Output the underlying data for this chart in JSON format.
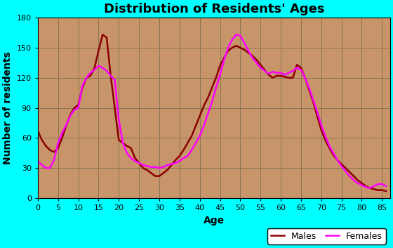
{
  "title": "Distribution of Residents' Ages",
  "xlabel": "Age",
  "ylabel": "Number of residents",
  "xlim": [
    0,
    87
  ],
  "ylim": [
    0,
    180
  ],
  "xticks": [
    0,
    5,
    10,
    15,
    20,
    25,
    30,
    35,
    40,
    45,
    50,
    55,
    60,
    65,
    70,
    75,
    80,
    85
  ],
  "yticks": [
    0,
    30,
    60,
    90,
    120,
    150,
    180
  ],
  "background_color": "#00FFFF",
  "plot_bg_color": "#C8956A",
  "grid_color": "#8B7355",
  "male_color": "#8B0000",
  "female_color": "#FF00FF",
  "ages": [
    0,
    1,
    2,
    3,
    4,
    5,
    6,
    7,
    8,
    9,
    10,
    11,
    12,
    13,
    14,
    15,
    16,
    17,
    18,
    19,
    20,
    21,
    22,
    23,
    24,
    25,
    26,
    27,
    28,
    29,
    30,
    31,
    32,
    33,
    34,
    35,
    36,
    37,
    38,
    39,
    40,
    41,
    42,
    43,
    44,
    45,
    46,
    47,
    48,
    49,
    50,
    51,
    52,
    53,
    54,
    55,
    56,
    57,
    58,
    59,
    60,
    61,
    62,
    63,
    64,
    65,
    66,
    67,
    68,
    69,
    70,
    71,
    72,
    73,
    74,
    75,
    76,
    77,
    78,
    79,
    80,
    81,
    82,
    83,
    84,
    85,
    86
  ],
  "males": [
    67,
    58,
    52,
    48,
    46,
    50,
    60,
    72,
    83,
    90,
    93,
    110,
    120,
    122,
    130,
    147,
    163,
    160,
    122,
    90,
    58,
    55,
    52,
    50,
    40,
    35,
    30,
    28,
    25,
    22,
    22,
    25,
    28,
    33,
    38,
    42,
    48,
    55,
    62,
    72,
    82,
    92,
    100,
    110,
    120,
    132,
    140,
    147,
    150,
    152,
    150,
    148,
    145,
    142,
    138,
    133,
    128,
    123,
    120,
    122,
    122,
    121,
    120,
    120,
    133,
    130,
    120,
    108,
    96,
    82,
    68,
    58,
    50,
    43,
    38,
    34,
    30,
    26,
    22,
    18,
    15,
    12,
    10,
    9,
    8,
    8,
    7
  ],
  "females": [
    37,
    33,
    30,
    30,
    38,
    55,
    65,
    73,
    82,
    88,
    90,
    112,
    120,
    125,
    128,
    132,
    130,
    127,
    122,
    118,
    78,
    55,
    45,
    40,
    37,
    35,
    33,
    32,
    31,
    31,
    30,
    31,
    33,
    34,
    35,
    37,
    40,
    42,
    48,
    55,
    62,
    72,
    84,
    96,
    110,
    123,
    138,
    150,
    158,
    163,
    162,
    155,
    147,
    140,
    135,
    130,
    127,
    124,
    126,
    125,
    125,
    123,
    125,
    127,
    130,
    128,
    120,
    110,
    98,
    86,
    73,
    62,
    52,
    45,
    38,
    32,
    27,
    22,
    18,
    15,
    13,
    11,
    10,
    12,
    14,
    14,
    12
  ],
  "legend_labels": [
    "Males",
    "Females"
  ],
  "title_fontsize": 13,
  "label_fontsize": 10,
  "tick_fontsize": 8
}
